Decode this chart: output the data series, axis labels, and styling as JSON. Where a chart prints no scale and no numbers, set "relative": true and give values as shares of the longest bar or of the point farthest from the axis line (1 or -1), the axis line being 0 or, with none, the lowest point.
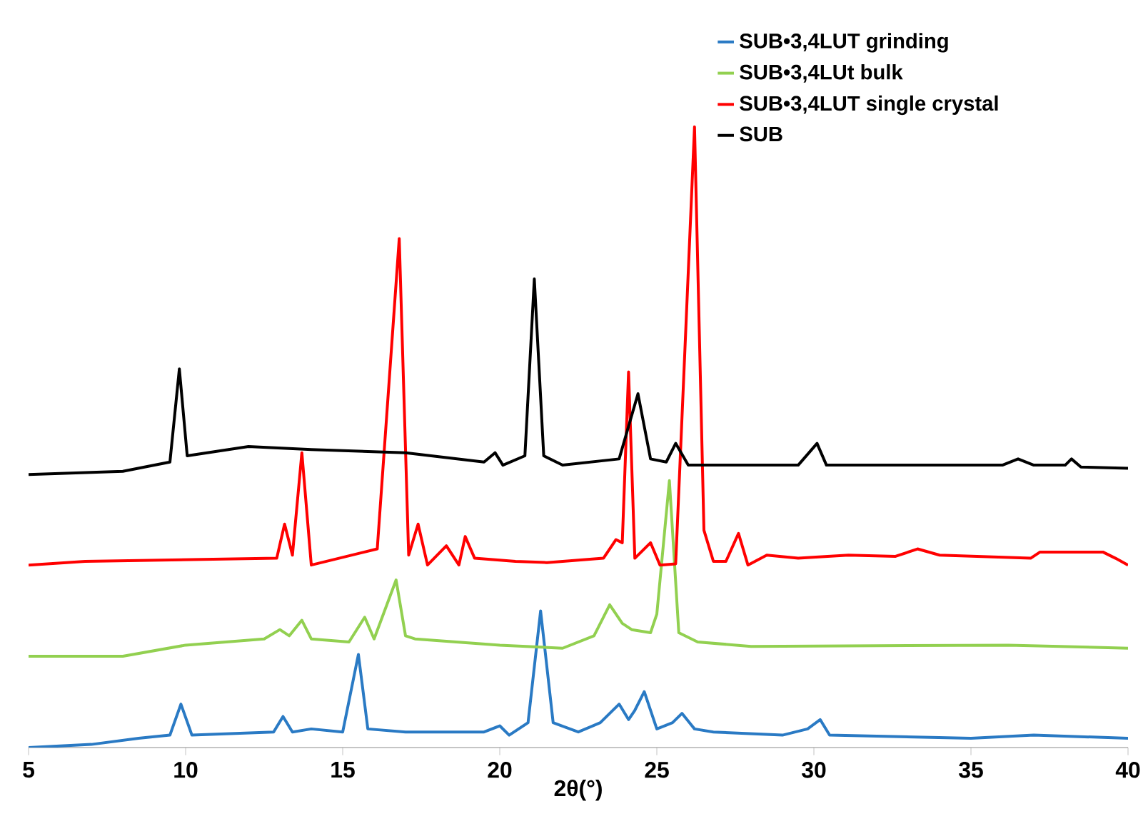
{
  "chart_data": {
    "type": "line",
    "relative": true,
    "xlabel": "2θ(°)",
    "xlim": [
      5,
      40
    ],
    "xticks": [
      5,
      10,
      15,
      20,
      25,
      30,
      35,
      40
    ],
    "legend": "top right",
    "line_style": "solid",
    "series": [
      {
        "name": "SUB•3,4LUT grinding",
        "color": "#2a7ac4",
        "x": [
          5,
          7,
          8.5,
          9.5,
          9.85,
          10.2,
          12.8,
          13.1,
          13.4,
          14,
          15,
          15.5,
          15.8,
          17,
          19.5,
          20,
          20.3,
          20.9,
          21.3,
          21.7,
          22.5,
          23.2,
          23.8,
          24.1,
          24.3,
          24.6,
          25,
          25.5,
          25.8,
          26.2,
          26.8,
          29,
          29.8,
          30.2,
          30.5,
          35,
          37,
          40
        ],
        "values": [
          0,
          0.005,
          0.015,
          0.02,
          0.07,
          0.02,
          0.025,
          0.05,
          0.025,
          0.03,
          0.025,
          0.15,
          0.03,
          0.025,
          0.025,
          0.035,
          0.02,
          0.04,
          0.22,
          0.04,
          0.025,
          0.04,
          0.07,
          0.045,
          0.06,
          0.09,
          0.03,
          0.04,
          0.055,
          0.03,
          0.025,
          0.02,
          0.03,
          0.045,
          0.02,
          0.015,
          0.02,
          0.015
        ]
      },
      {
        "name": "SUB•3,4LUt bulk",
        "color": "#92d050",
        "x": [
          5,
          8,
          10,
          12.5,
          13,
          13.3,
          13.7,
          14,
          15.2,
          15.7,
          16,
          16.7,
          17,
          17.3,
          20,
          22,
          23,
          23.5,
          23.9,
          24.2,
          24.8,
          25,
          25.4,
          25.7,
          26.3,
          28,
          36.2,
          40
        ],
        "values": [
          0.147,
          0.147,
          0.165,
          0.175,
          0.19,
          0.18,
          0.205,
          0.175,
          0.17,
          0.21,
          0.175,
          0.27,
          0.18,
          0.175,
          0.165,
          0.16,
          0.18,
          0.23,
          0.2,
          0.19,
          0.185,
          0.215,
          0.43,
          0.185,
          0.17,
          0.163,
          0.165,
          0.16
        ]
      },
      {
        "name": "SUB•3,4LUT single crystal",
        "color": "#ff0000",
        "x": [
          5,
          6.8,
          12.9,
          13.15,
          13.4,
          13.7,
          14,
          16.1,
          16.8,
          17.1,
          17.4,
          17.7,
          18.3,
          18.7,
          18.9,
          19.2,
          20.5,
          21.5,
          23.3,
          23.7,
          23.9,
          24.1,
          24.3,
          24.8,
          25.1,
          25.6,
          26.2,
          26.5,
          26.8,
          27.2,
          27.6,
          27.9,
          28.5,
          29.5,
          31.1,
          32.6,
          33.3,
          34,
          36.9,
          37.2,
          38.6,
          39.2,
          39.6,
          40
        ],
        "values": [
          0.294,
          0.3,
          0.305,
          0.36,
          0.31,
          0.475,
          0.294,
          0.32,
          0.82,
          0.31,
          0.36,
          0.294,
          0.325,
          0.294,
          0.34,
          0.305,
          0.3,
          0.298,
          0.305,
          0.335,
          0.33,
          0.605,
          0.305,
          0.33,
          0.294,
          0.296,
          1.0,
          0.35,
          0.3,
          0.3,
          0.345,
          0.294,
          0.31,
          0.305,
          0.31,
          0.308,
          0.32,
          0.31,
          0.305,
          0.315,
          0.315,
          0.315,
          0.305,
          0.294
        ]
      },
      {
        "name": "SUB",
        "color": "#000000",
        "x": [
          5,
          8,
          9.5,
          9.8,
          10.05,
          12,
          14,
          17,
          19.5,
          19.85,
          20.1,
          20.8,
          21.1,
          21.4,
          22,
          23.8,
          24.4,
          24.8,
          25.3,
          25.6,
          26,
          29.5,
          30.1,
          30.4,
          36,
          36.5,
          37,
          38,
          38.2,
          38.5,
          40
        ],
        "values": [
          0.44,
          0.445,
          0.46,
          0.61,
          0.47,
          0.485,
          0.48,
          0.475,
          0.46,
          0.475,
          0.455,
          0.47,
          0.755,
          0.47,
          0.455,
          0.465,
          0.57,
          0.465,
          0.46,
          0.49,
          0.455,
          0.455,
          0.49,
          0.455,
          0.455,
          0.465,
          0.455,
          0.455,
          0.465,
          0.452,
          0.45
        ]
      }
    ]
  }
}
